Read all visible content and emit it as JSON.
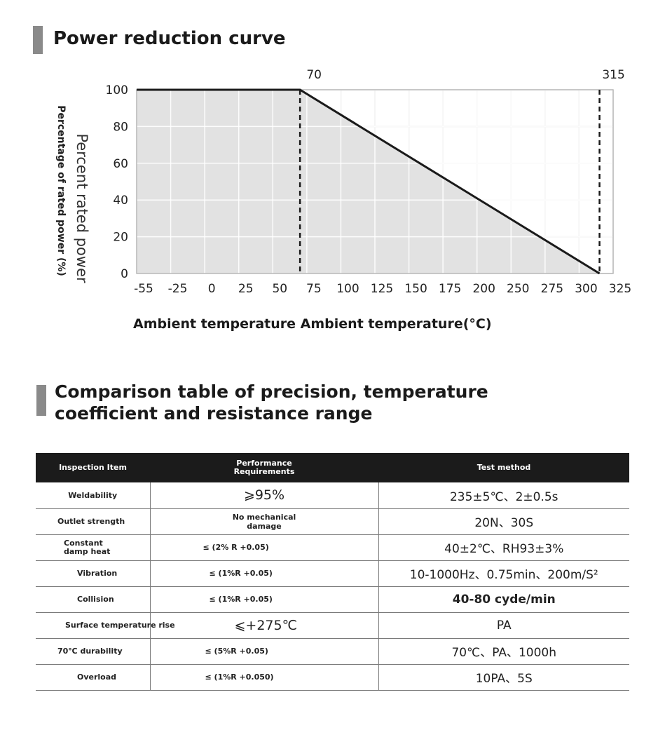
{
  "section1": {
    "title": "Power reduction curve"
  },
  "section2": {
    "title_line1": "Comparison table of precision, temperature",
    "title_line2": "coefficient and resistance range"
  },
  "chart_data": {
    "type": "line",
    "ylabel_primary": "Percent rated power",
    "ylabel_secondary": "Percentage of rated power (%)",
    "xlabel_part1": "Ambient temperature",
    "xlabel_part2": "Ambient temperature(°C)",
    "x_ticks": [
      "-55",
      "-25",
      "0",
      "25",
      "50",
      "75",
      "100",
      "125",
      "150",
      "175",
      "200",
      "250",
      "275",
      "300",
      "325"
    ],
    "y_ticks": [
      "0",
      "20",
      "40",
      "60",
      "80",
      "100"
    ],
    "ylim": [
      0,
      100
    ],
    "series": [
      {
        "x": [
          -55,
          70,
          315
        ],
        "y": [
          100,
          100,
          0
        ]
      }
    ],
    "annotations": [
      {
        "x": 70,
        "label": "70"
      },
      {
        "x": 315,
        "label": "315"
      }
    ],
    "grid": true,
    "fill": "#e2e2e2"
  },
  "table": {
    "headers": [
      "Inspection Item",
      "Performance Requirements",
      "Test method"
    ],
    "rows": [
      {
        "item": "Weldability",
        "requirement": "⩾95%",
        "method": "235±5℃、2±0.5s"
      },
      {
        "item": "Outlet strength",
        "requirement": "No mechanical damage",
        "method": "20N、30S"
      },
      {
        "item": "Constant damp heat",
        "requirement": "≤ (2% R +0.05)",
        "method": "40±2℃、RH93±3%"
      },
      {
        "item": "Vibration",
        "requirement": "≤ (1%R +0.05)",
        "method": "10-1000Hz、0.75min、200m/S²"
      },
      {
        "item": "Collision",
        "requirement": "≤ (1%R +0.05)",
        "method": "40-80 cyde/min"
      },
      {
        "item": "Surface temperature rise",
        "requirement": "⩽+275℃",
        "method": "PA"
      },
      {
        "item": "70℃ durability",
        "requirement": "≤ (5%R +0.05)",
        "method": "70℃、PA、1000h"
      },
      {
        "item": "Overload",
        "requirement": "≤ (1%R +0.050)",
        "method": "10PA、5S"
      }
    ]
  }
}
